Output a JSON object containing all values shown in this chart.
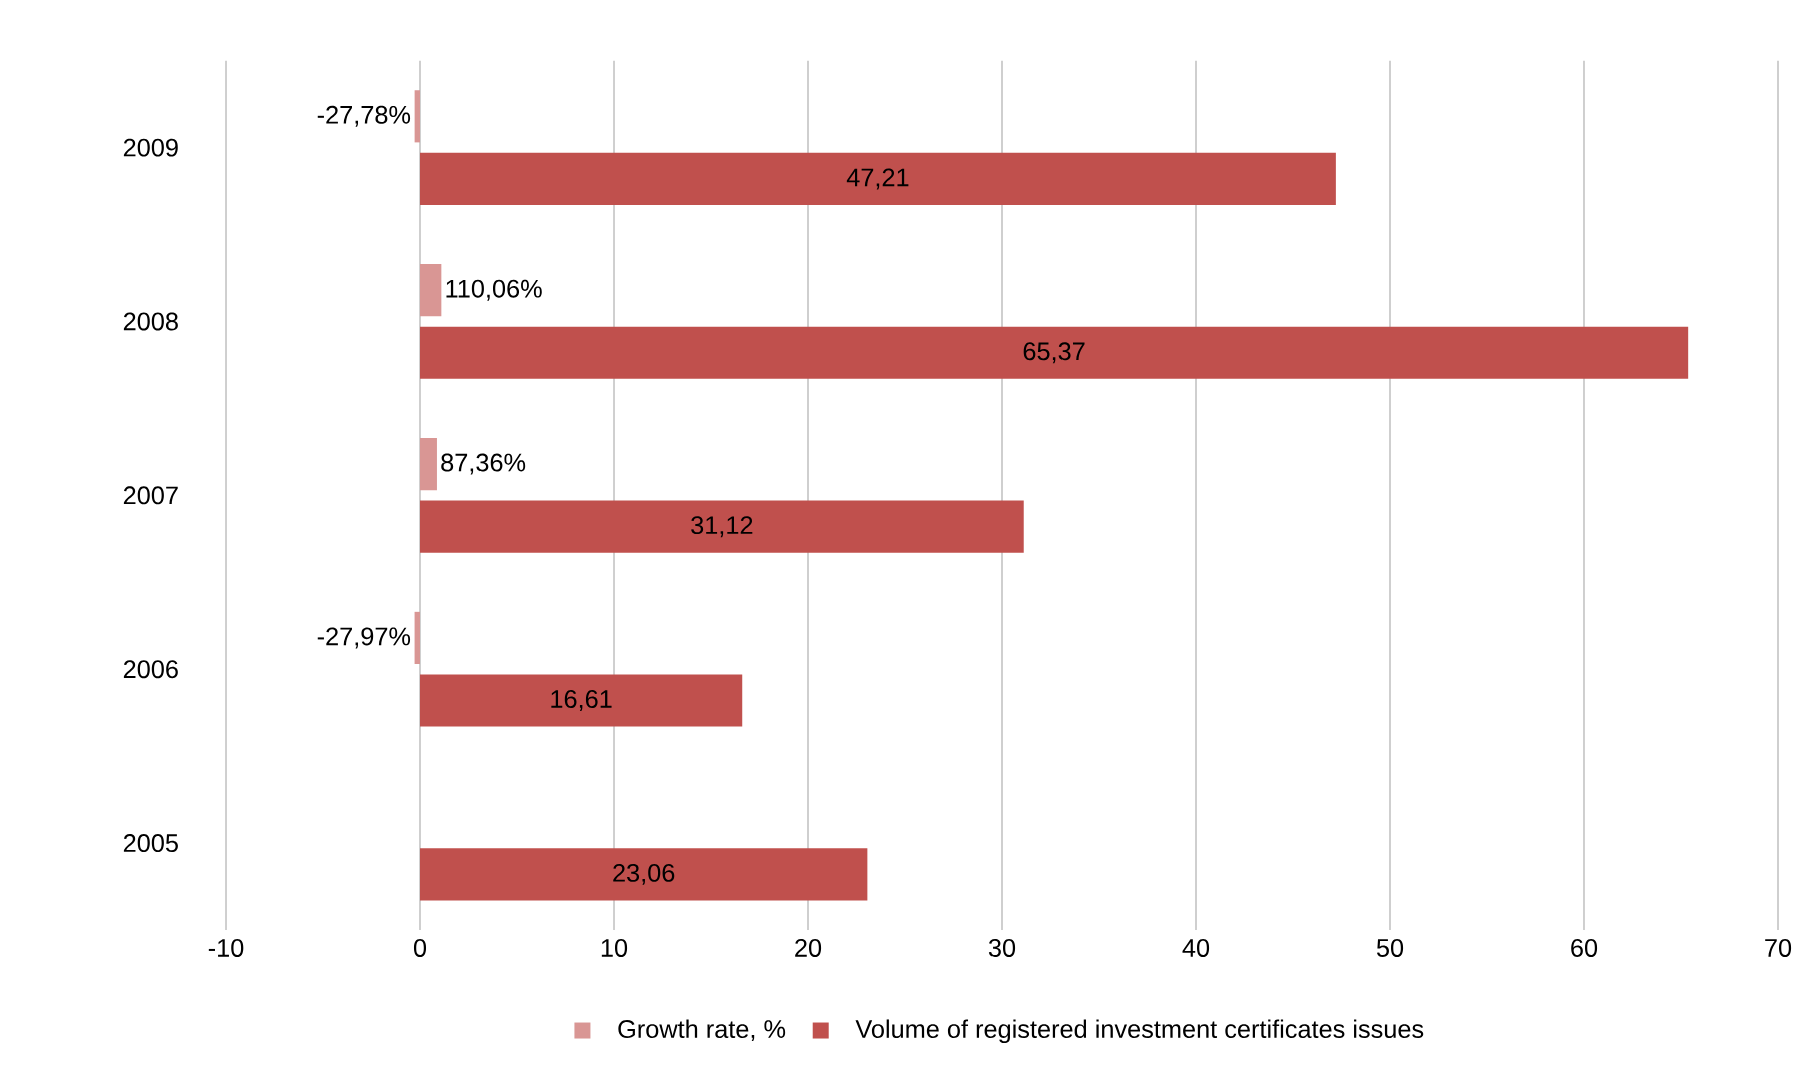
{
  "chart_data": {
    "type": "bar",
    "orientation": "horizontal",
    "categories": [
      "2009",
      "2008",
      "2007",
      "2006",
      "2005"
    ],
    "series": [
      {
        "name": "Growth rate, %",
        "color": "#d99694",
        "values": [
          -0.2778,
          1.1006,
          0.8736,
          -0.2797,
          null
        ],
        "value_labels": [
          "-27,78%",
          "110,06%",
          "87,36%",
          "-27,97%",
          null
        ]
      },
      {
        "name": "Volume of registered investment certificates issues",
        "color": "#c0504d",
        "values": [
          47.21,
          65.37,
          31.12,
          16.61,
          23.06
        ],
        "value_labels": [
          "47,21",
          "65,37",
          "31,12",
          "16,61",
          "23,06"
        ]
      }
    ],
    "xlim": [
      -10,
      70
    ],
    "xticks": [
      -10,
      0,
      10,
      20,
      30,
      40,
      50,
      60,
      70
    ],
    "grid": "x",
    "legend": "bottom"
  }
}
